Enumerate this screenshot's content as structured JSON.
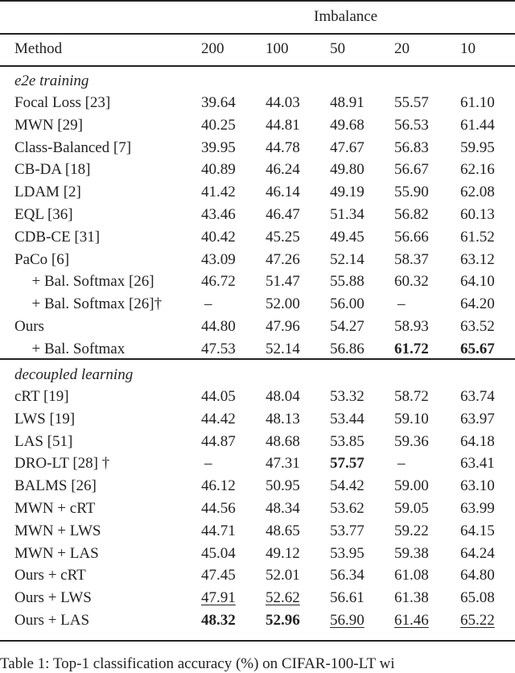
{
  "table": {
    "group_header": "Imbalance",
    "columns": [
      "Method",
      "200",
      "100",
      "50",
      "20",
      "10"
    ],
    "sections": [
      {
        "title": "e2e training",
        "rows": [
          {
            "method": "Focal Loss [23]",
            "values": [
              "39.64",
              "44.03",
              "48.91",
              "55.57",
              "61.10"
            ]
          },
          {
            "method": "MWN [29]",
            "values": [
              "40.25",
              "44.81",
              "49.68",
              "56.53",
              "61.44"
            ]
          },
          {
            "method": "Class-Balanced [7]",
            "values": [
              "39.95",
              "44.78",
              "47.67",
              "56.83",
              "59.95"
            ]
          },
          {
            "method": "CB-DA [18]",
            "values": [
              "40.89",
              "46.24",
              "49.80",
              "56.67",
              "62.16"
            ]
          },
          {
            "method": "LDAM [2]",
            "values": [
              "41.42",
              "46.14",
              "49.19",
              "55.90",
              "62.08"
            ]
          },
          {
            "method": "EQL [36]",
            "values": [
              "43.46",
              "46.47",
              "51.34",
              "56.82",
              "60.13"
            ]
          },
          {
            "method": "CDB-CE [31]",
            "values": [
              "40.42",
              "45.25",
              "49.45",
              "56.66",
              "61.52"
            ]
          },
          {
            "method": "PaCo [6]",
            "values": [
              "43.09",
              "47.26",
              "52.14",
              "58.37",
              "63.12"
            ]
          },
          {
            "method": "  + Bal. Softmax [26]",
            "values": [
              "46.72",
              "51.47",
              "55.88",
              "60.32",
              "64.10"
            ]
          },
          {
            "method": "  + Bal. Softmax [26]†",
            "values": [
              "–",
              "52.00",
              "56.00",
              "–",
              "64.20"
            ]
          },
          {
            "method": "Ours",
            "values": [
              "44.80",
              "47.96",
              "54.27",
              "58.93",
              "63.52"
            ]
          },
          {
            "method": "  + Bal. Softmax",
            "values": [
              "47.53",
              "52.14",
              "56.86",
              "61.72",
              "65.67"
            ],
            "bold": [
              3,
              4
            ]
          }
        ]
      },
      {
        "title": "decoupled learning",
        "rows": [
          {
            "method": "cRT [19]",
            "values": [
              "44.05",
              "48.04",
              "53.32",
              "58.72",
              "63.74"
            ]
          },
          {
            "method": "LWS [19]",
            "values": [
              "44.42",
              "48.13",
              "53.44",
              "59.10",
              "63.97"
            ]
          },
          {
            "method": "LAS [51]",
            "values": [
              "44.87",
              "48.68",
              "53.85",
              "59.36",
              "64.18"
            ]
          },
          {
            "method": "DRO-LT [28] †",
            "values": [
              "–",
              "47.31",
              "57.57",
              "–",
              "63.41"
            ],
            "bold": [
              2
            ]
          },
          {
            "method": "BALMS [26]",
            "values": [
              "46.12",
              "50.95",
              "54.42",
              "59.00",
              "63.10"
            ]
          },
          {
            "method": "MWN + cRT",
            "values": [
              "44.56",
              "48.34",
              "53.62",
              "59.05",
              "63.99"
            ]
          },
          {
            "method": "MWN + LWS",
            "values": [
              "44.71",
              "48.65",
              "53.77",
              "59.22",
              "64.15"
            ]
          },
          {
            "method": "MWN + LAS",
            "values": [
              "45.04",
              "49.12",
              "53.95",
              "59.38",
              "64.24"
            ]
          },
          {
            "method": "Ours + cRT",
            "values": [
              "47.45",
              "52.01",
              "56.34",
              "61.08",
              "64.80"
            ]
          },
          {
            "method": "Ours + LWS",
            "values": [
              "47.91",
              "52.62",
              "56.61",
              "61.38",
              "65.08"
            ],
            "underline": [
              0,
              1
            ]
          },
          {
            "method": "Ours + LAS",
            "values": [
              "48.32",
              "52.96",
              "56.90",
              "61.46",
              "65.22"
            ],
            "bold": [
              0,
              1
            ],
            "underline": [
              2,
              3,
              4
            ]
          }
        ]
      }
    ]
  },
  "caption": "Table 1: Top-1 classification accuracy (%) on CIFAR-100-LT wi"
}
